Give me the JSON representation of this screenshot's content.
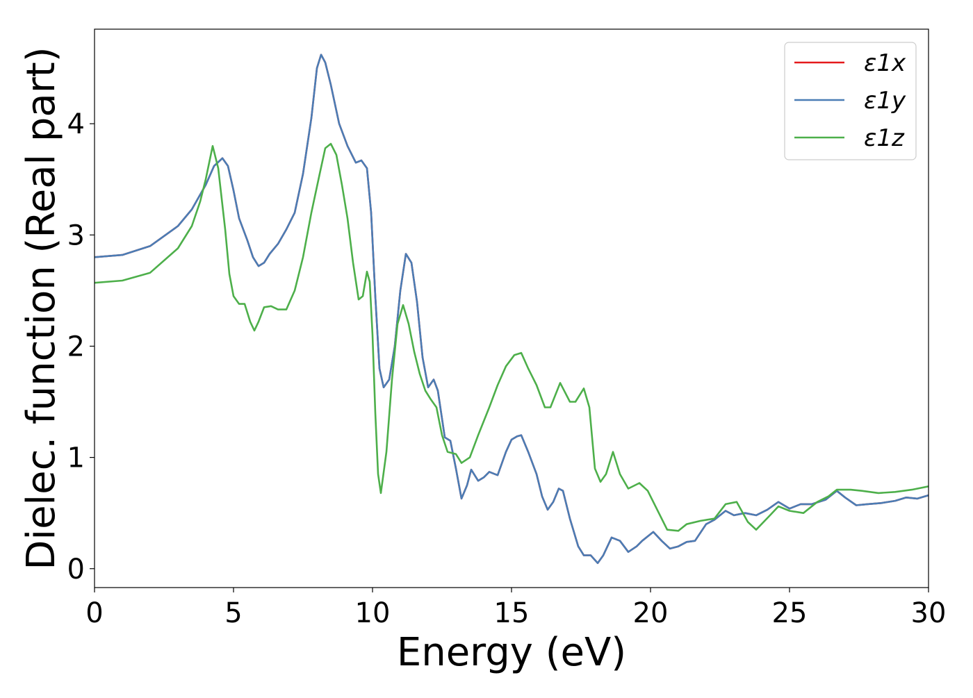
{
  "chart_data": {
    "type": "line",
    "title": "",
    "xlabel": "Energy (eV)",
    "ylabel": "Dielec. function (Real part)",
    "xlim": [
      0,
      30
    ],
    "ylim": [
      -0.17,
      4.85
    ],
    "xticks": [
      0,
      5,
      10,
      15,
      20,
      25,
      30
    ],
    "xtick_labels": [
      "0",
      "5",
      "10",
      "15",
      "20",
      "25",
      "30"
    ],
    "yticks": [
      0,
      1,
      2,
      3,
      4
    ],
    "ytick_labels": [
      "0",
      "1",
      "2",
      "3",
      "4"
    ],
    "grid": false,
    "legend_position": "top-right",
    "series": [
      {
        "name": "ε1x",
        "color": "#e41a1c",
        "points": [
          [
            0,
            2.8
          ],
          [
            1,
            2.82
          ],
          [
            2,
            2.9
          ],
          [
            3,
            3.08
          ],
          [
            3.5,
            3.23
          ],
          [
            4,
            3.45
          ],
          [
            4.3,
            3.62
          ],
          [
            4.6,
            3.69
          ],
          [
            4.8,
            3.62
          ],
          [
            5,
            3.4
          ],
          [
            5.2,
            3.15
          ],
          [
            5.5,
            2.95
          ],
          [
            5.7,
            2.8
          ],
          [
            5.9,
            2.72
          ],
          [
            6.1,
            2.75
          ],
          [
            6.3,
            2.83
          ],
          [
            6.6,
            2.92
          ],
          [
            6.9,
            3.05
          ],
          [
            7.2,
            3.2
          ],
          [
            7.5,
            3.55
          ],
          [
            7.8,
            4.05
          ],
          [
            8.0,
            4.5
          ],
          [
            8.15,
            4.62
          ],
          [
            8.3,
            4.55
          ],
          [
            8.5,
            4.35
          ],
          [
            8.8,
            4.0
          ],
          [
            9.1,
            3.8
          ],
          [
            9.4,
            3.65
          ],
          [
            9.6,
            3.67
          ],
          [
            9.8,
            3.6
          ],
          [
            9.95,
            3.2
          ],
          [
            10.1,
            2.45
          ],
          [
            10.25,
            1.8
          ],
          [
            10.4,
            1.63
          ],
          [
            10.6,
            1.7
          ],
          [
            10.8,
            2.0
          ],
          [
            11.0,
            2.5
          ],
          [
            11.2,
            2.83
          ],
          [
            11.4,
            2.75
          ],
          [
            11.6,
            2.4
          ],
          [
            11.8,
            1.9
          ],
          [
            12.0,
            1.63
          ],
          [
            12.2,
            1.7
          ],
          [
            12.35,
            1.6
          ],
          [
            12.6,
            1.18
          ],
          [
            12.8,
            1.15
          ],
          [
            13.0,
            0.9
          ],
          [
            13.2,
            0.63
          ],
          [
            13.4,
            0.75
          ],
          [
            13.55,
            0.89
          ],
          [
            13.8,
            0.79
          ],
          [
            14.0,
            0.82
          ],
          [
            14.2,
            0.87
          ],
          [
            14.5,
            0.84
          ],
          [
            14.8,
            1.05
          ],
          [
            15.0,
            1.16
          ],
          [
            15.2,
            1.19
          ],
          [
            15.35,
            1.2
          ],
          [
            15.6,
            1.05
          ],
          [
            15.9,
            0.85
          ],
          [
            16.1,
            0.65
          ],
          [
            16.3,
            0.53
          ],
          [
            16.5,
            0.6
          ],
          [
            16.7,
            0.72
          ],
          [
            16.85,
            0.7
          ],
          [
            17.1,
            0.45
          ],
          [
            17.4,
            0.2
          ],
          [
            17.6,
            0.12
          ],
          [
            17.85,
            0.12
          ],
          [
            18.1,
            0.05
          ],
          [
            18.3,
            0.12
          ],
          [
            18.6,
            0.28
          ],
          [
            18.9,
            0.25
          ],
          [
            19.2,
            0.15
          ],
          [
            19.5,
            0.2
          ],
          [
            19.7,
            0.25
          ],
          [
            20.1,
            0.33
          ],
          [
            20.4,
            0.25
          ],
          [
            20.7,
            0.18
          ],
          [
            21.0,
            0.2
          ],
          [
            21.3,
            0.24
          ],
          [
            21.6,
            0.25
          ],
          [
            22.0,
            0.4
          ],
          [
            22.3,
            0.44
          ],
          [
            22.7,
            0.52
          ],
          [
            23.0,
            0.48
          ],
          [
            23.4,
            0.5
          ],
          [
            23.8,
            0.48
          ],
          [
            24.2,
            0.53
          ],
          [
            24.6,
            0.6
          ],
          [
            25.0,
            0.54
          ],
          [
            25.4,
            0.58
          ],
          [
            25.8,
            0.58
          ],
          [
            26.3,
            0.62
          ],
          [
            26.7,
            0.7
          ],
          [
            27.0,
            0.64
          ],
          [
            27.4,
            0.57
          ],
          [
            27.8,
            0.58
          ],
          [
            28.3,
            0.59
          ],
          [
            28.8,
            0.61
          ],
          [
            29.2,
            0.64
          ],
          [
            29.6,
            0.63
          ],
          [
            30.0,
            0.66
          ]
        ]
      },
      {
        "name": "ε1y",
        "color": "#4a7db5",
        "points": [
          [
            0,
            2.8
          ],
          [
            1,
            2.82
          ],
          [
            2,
            2.9
          ],
          [
            3,
            3.08
          ],
          [
            3.5,
            3.23
          ],
          [
            4,
            3.45
          ],
          [
            4.3,
            3.62
          ],
          [
            4.6,
            3.69
          ],
          [
            4.8,
            3.62
          ],
          [
            5,
            3.4
          ],
          [
            5.2,
            3.15
          ],
          [
            5.5,
            2.95
          ],
          [
            5.7,
            2.8
          ],
          [
            5.9,
            2.72
          ],
          [
            6.1,
            2.75
          ],
          [
            6.3,
            2.83
          ],
          [
            6.6,
            2.92
          ],
          [
            6.9,
            3.05
          ],
          [
            7.2,
            3.2
          ],
          [
            7.5,
            3.55
          ],
          [
            7.8,
            4.05
          ],
          [
            8.0,
            4.5
          ],
          [
            8.15,
            4.62
          ],
          [
            8.3,
            4.55
          ],
          [
            8.5,
            4.35
          ],
          [
            8.8,
            4.0
          ],
          [
            9.1,
            3.8
          ],
          [
            9.4,
            3.65
          ],
          [
            9.6,
            3.67
          ],
          [
            9.8,
            3.6
          ],
          [
            9.95,
            3.2
          ],
          [
            10.1,
            2.45
          ],
          [
            10.25,
            1.8
          ],
          [
            10.4,
            1.63
          ],
          [
            10.6,
            1.7
          ],
          [
            10.8,
            2.0
          ],
          [
            11.0,
            2.5
          ],
          [
            11.2,
            2.83
          ],
          [
            11.4,
            2.75
          ],
          [
            11.6,
            2.4
          ],
          [
            11.8,
            1.9
          ],
          [
            12.0,
            1.63
          ],
          [
            12.2,
            1.7
          ],
          [
            12.35,
            1.6
          ],
          [
            12.6,
            1.18
          ],
          [
            12.8,
            1.15
          ],
          [
            13.0,
            0.9
          ],
          [
            13.2,
            0.63
          ],
          [
            13.4,
            0.75
          ],
          [
            13.55,
            0.89
          ],
          [
            13.8,
            0.79
          ],
          [
            14.0,
            0.82
          ],
          [
            14.2,
            0.87
          ],
          [
            14.5,
            0.84
          ],
          [
            14.8,
            1.05
          ],
          [
            15.0,
            1.16
          ],
          [
            15.2,
            1.19
          ],
          [
            15.35,
            1.2
          ],
          [
            15.6,
            1.05
          ],
          [
            15.9,
            0.85
          ],
          [
            16.1,
            0.65
          ],
          [
            16.3,
            0.53
          ],
          [
            16.5,
            0.6
          ],
          [
            16.7,
            0.72
          ],
          [
            16.85,
            0.7
          ],
          [
            17.1,
            0.45
          ],
          [
            17.4,
            0.2
          ],
          [
            17.6,
            0.12
          ],
          [
            17.85,
            0.12
          ],
          [
            18.1,
            0.05
          ],
          [
            18.3,
            0.12
          ],
          [
            18.6,
            0.28
          ],
          [
            18.9,
            0.25
          ],
          [
            19.2,
            0.15
          ],
          [
            19.5,
            0.2
          ],
          [
            19.7,
            0.25
          ],
          [
            20.1,
            0.33
          ],
          [
            20.4,
            0.25
          ],
          [
            20.7,
            0.18
          ],
          [
            21.0,
            0.2
          ],
          [
            21.3,
            0.24
          ],
          [
            21.6,
            0.25
          ],
          [
            22.0,
            0.4
          ],
          [
            22.3,
            0.44
          ],
          [
            22.7,
            0.52
          ],
          [
            23.0,
            0.48
          ],
          [
            23.4,
            0.5
          ],
          [
            23.8,
            0.48
          ],
          [
            24.2,
            0.53
          ],
          [
            24.6,
            0.6
          ],
          [
            25.0,
            0.54
          ],
          [
            25.4,
            0.58
          ],
          [
            25.8,
            0.58
          ],
          [
            26.3,
            0.62
          ],
          [
            26.7,
            0.7
          ],
          [
            27.0,
            0.64
          ],
          [
            27.4,
            0.57
          ],
          [
            27.8,
            0.58
          ],
          [
            28.3,
            0.59
          ],
          [
            28.8,
            0.61
          ],
          [
            29.2,
            0.64
          ],
          [
            29.6,
            0.63
          ],
          [
            30.0,
            0.66
          ]
        ]
      },
      {
        "name": "ε1z",
        "color": "#4daf4a",
        "points": [
          [
            0,
            2.57
          ],
          [
            1,
            2.59
          ],
          [
            2,
            2.66
          ],
          [
            3,
            2.88
          ],
          [
            3.5,
            3.08
          ],
          [
            3.8,
            3.3
          ],
          [
            4.0,
            3.5
          ],
          [
            4.25,
            3.8
          ],
          [
            4.45,
            3.6
          ],
          [
            4.7,
            3.05
          ],
          [
            4.85,
            2.65
          ],
          [
            5.0,
            2.45
          ],
          [
            5.2,
            2.38
          ],
          [
            5.4,
            2.38
          ],
          [
            5.6,
            2.22
          ],
          [
            5.75,
            2.14
          ],
          [
            5.9,
            2.22
          ],
          [
            6.1,
            2.35
          ],
          [
            6.35,
            2.36
          ],
          [
            6.6,
            2.33
          ],
          [
            6.9,
            2.33
          ],
          [
            7.2,
            2.5
          ],
          [
            7.5,
            2.8
          ],
          [
            7.8,
            3.2
          ],
          [
            8.1,
            3.55
          ],
          [
            8.3,
            3.78
          ],
          [
            8.5,
            3.82
          ],
          [
            8.7,
            3.72
          ],
          [
            8.9,
            3.45
          ],
          [
            9.1,
            3.15
          ],
          [
            9.3,
            2.75
          ],
          [
            9.5,
            2.42
          ],
          [
            9.65,
            2.45
          ],
          [
            9.8,
            2.67
          ],
          [
            9.9,
            2.58
          ],
          [
            10.0,
            2.1
          ],
          [
            10.1,
            1.4
          ],
          [
            10.2,
            0.85
          ],
          [
            10.3,
            0.68
          ],
          [
            10.5,
            1.05
          ],
          [
            10.7,
            1.7
          ],
          [
            10.9,
            2.2
          ],
          [
            11.1,
            2.37
          ],
          [
            11.3,
            2.2
          ],
          [
            11.5,
            1.95
          ],
          [
            11.7,
            1.75
          ],
          [
            11.9,
            1.6
          ],
          [
            12.1,
            1.52
          ],
          [
            12.3,
            1.45
          ],
          [
            12.5,
            1.2
          ],
          [
            12.7,
            1.05
          ],
          [
            13.0,
            1.03
          ],
          [
            13.2,
            0.95
          ],
          [
            13.5,
            1.0
          ],
          [
            13.8,
            1.2
          ],
          [
            14.2,
            1.45
          ],
          [
            14.5,
            1.65
          ],
          [
            14.8,
            1.82
          ],
          [
            15.1,
            1.92
          ],
          [
            15.35,
            1.94
          ],
          [
            15.6,
            1.8
          ],
          [
            15.9,
            1.65
          ],
          [
            16.2,
            1.45
          ],
          [
            16.4,
            1.45
          ],
          [
            16.75,
            1.67
          ],
          [
            17.1,
            1.5
          ],
          [
            17.3,
            1.5
          ],
          [
            17.6,
            1.62
          ],
          [
            17.8,
            1.45
          ],
          [
            18.0,
            0.9
          ],
          [
            18.2,
            0.78
          ],
          [
            18.4,
            0.85
          ],
          [
            18.65,
            1.05
          ],
          [
            18.9,
            0.85
          ],
          [
            19.2,
            0.72
          ],
          [
            19.6,
            0.77
          ],
          [
            19.9,
            0.7
          ],
          [
            20.2,
            0.55
          ],
          [
            20.6,
            0.35
          ],
          [
            21.0,
            0.34
          ],
          [
            21.3,
            0.4
          ],
          [
            21.8,
            0.43
          ],
          [
            22.3,
            0.45
          ],
          [
            22.7,
            0.58
          ],
          [
            23.1,
            0.6
          ],
          [
            23.5,
            0.42
          ],
          [
            23.8,
            0.35
          ],
          [
            24.3,
            0.48
          ],
          [
            24.6,
            0.56
          ],
          [
            25.0,
            0.52
          ],
          [
            25.5,
            0.5
          ],
          [
            26.0,
            0.6
          ],
          [
            26.4,
            0.65
          ],
          [
            26.7,
            0.71
          ],
          [
            27.2,
            0.71
          ],
          [
            27.6,
            0.7
          ],
          [
            28.2,
            0.68
          ],
          [
            28.8,
            0.69
          ],
          [
            29.4,
            0.71
          ],
          [
            30.0,
            0.74
          ]
        ]
      }
    ]
  }
}
